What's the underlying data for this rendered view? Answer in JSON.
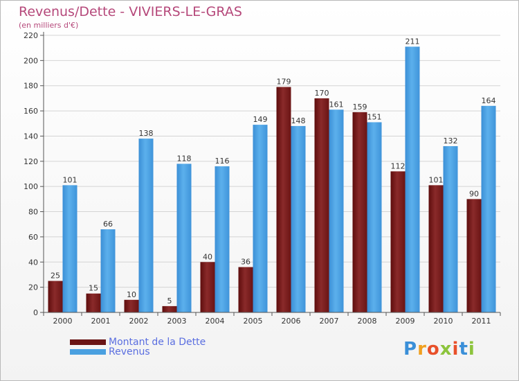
{
  "header": {
    "title": "Revenus/Dette - VIVIERS-LE-GRAS",
    "subtitle": "(en milliers d'€)"
  },
  "chart_data": {
    "type": "bar",
    "title": "Revenus/Dette - VIVIERS-LE-GRAS",
    "subtitle": "(en milliers d'€)",
    "xlabel": "",
    "ylabel": "",
    "categories": [
      "2000",
      "2001",
      "2002",
      "2003",
      "2004",
      "2005",
      "2006",
      "2007",
      "2008",
      "2009",
      "2010",
      "2011"
    ],
    "ylim": [
      0,
      220
    ],
    "yticks": [
      0,
      20,
      40,
      60,
      80,
      100,
      120,
      140,
      160,
      180,
      200,
      220
    ],
    "grid": true,
    "legend_position": "bottom-left",
    "series": [
      {
        "name": "Montant de la Dette",
        "color": "#7a1a1a",
        "values": [
          25,
          15,
          10,
          5,
          40,
          36,
          179,
          170,
          159,
          112,
          101,
          90
        ]
      },
      {
        "name": "Revenus",
        "color": "#4aa0e0",
        "values": [
          101,
          66,
          138,
          118,
          116,
          149,
          148,
          161,
          151,
          211,
          132,
          164
        ]
      }
    ]
  },
  "legend": {
    "items": [
      {
        "label": "Montant de la Dette",
        "color": "#7a1a1a"
      },
      {
        "label": "Revenus",
        "color": "#4aa0e0"
      }
    ]
  },
  "logo": {
    "letters": [
      "P",
      "r",
      "o",
      "x",
      "i",
      "t",
      "i"
    ],
    "colors": [
      "#3a8fd8",
      "#f0a020",
      "#e8502a",
      "#8cc43c",
      "#e8502a",
      "#3a8fd8",
      "#8cc43c"
    ]
  }
}
